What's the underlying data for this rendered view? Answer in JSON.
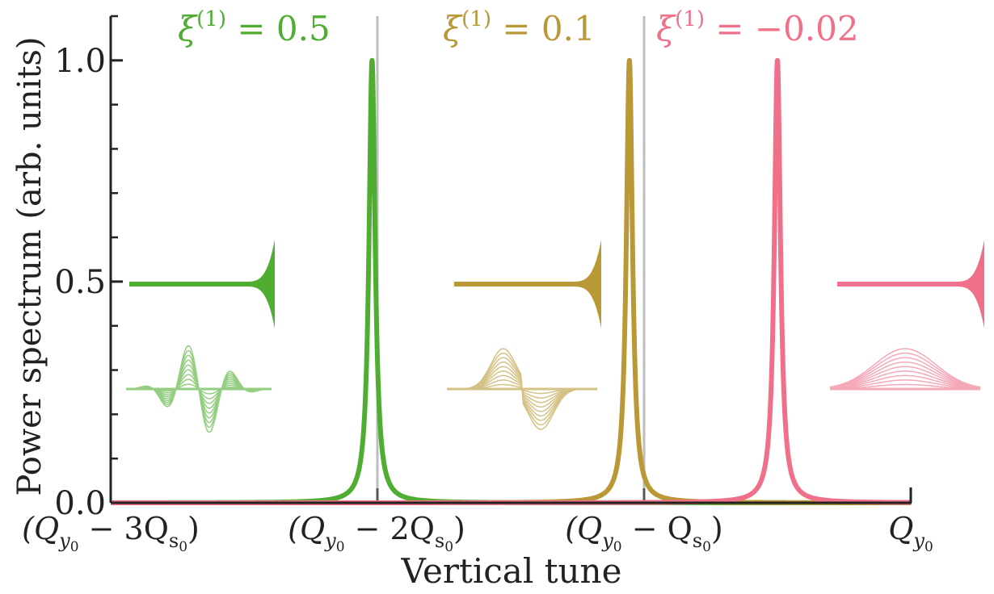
{
  "chart_data": {
    "type": "line",
    "xlabel": "Vertical tune",
    "ylabel": "Power spectrum (arb. units)",
    "ylim": [
      0,
      1.1
    ],
    "y_major_ticks": [
      "0.0",
      "0.5",
      "1.0"
    ],
    "y_minor_ticks": [
      0.1,
      0.2,
      0.3,
      0.4,
      0.6,
      0.7,
      0.8,
      0.9,
      1.1
    ],
    "x_ticks": [
      "(Q_y0 − 3Q_s0)",
      "(Q_y0 − 2Q_s0)",
      "(Q_y0 − Q_s0)",
      "Q_y0"
    ],
    "x_tick_values": [
      -3,
      -2,
      -1,
      0
    ],
    "xlim": [
      -3,
      0
    ],
    "reference_lines_x": [
      -2,
      -1
    ],
    "grid": false,
    "series": [
      {
        "name": "ξ(1) = 0.5",
        "color": "#4fae32",
        "peak_x": -2.02,
        "peak_y": 1.0,
        "halfwidth": 0.014
      },
      {
        "name": "ξ(1) = 0.1",
        "color": "#b99835",
        "peak_x": -1.055,
        "peak_y": 1.0,
        "halfwidth": 0.014
      },
      {
        "name": "ξ(1) = −0.02",
        "color": "#f07089",
        "peak_x": -0.5,
        "peak_y": 1.0,
        "halfwidth": 0.014
      }
    ],
    "annotations": [
      {
        "text": "ξ(1) = 0.5",
        "color": "#4fae32"
      },
      {
        "text": "ξ(1) = 0.1",
        "color": "#b99835"
      },
      {
        "text": "ξ(1) = −0.02",
        "color": "#f07089"
      }
    ]
  },
  "labels": {
    "series_labels": [
      {
        "base": "ξ",
        "sup": "(1)",
        "rest": " = 0.5"
      },
      {
        "base": "ξ",
        "sup": "(1)",
        "rest": " = 0.1"
      },
      {
        "base": "ξ",
        "sup": "(1)",
        "rest": " = −0.02"
      }
    ],
    "x_tick_parts": [
      {
        "pre": "(Q",
        "sub": "y",
        "subsub": "0",
        "mid": " − 3Q",
        "sub2": "s",
        "subsub2": "0",
        "post": ")"
      },
      {
        "pre": "(Q",
        "sub": "y",
        "subsub": "0",
        "mid": " − 2Q",
        "sub2": "s",
        "subsub2": "0",
        "post": ")"
      },
      {
        "pre": "(Q",
        "sub": "y",
        "subsub": "0",
        "mid": " − Q",
        "sub2": "s",
        "subsub2": "0",
        "post": ")"
      },
      {
        "pre": "Q",
        "sub": "y",
        "subsub": "0",
        "mid": "",
        "sub2": "",
        "subsub2": "",
        "post": ""
      }
    ]
  }
}
